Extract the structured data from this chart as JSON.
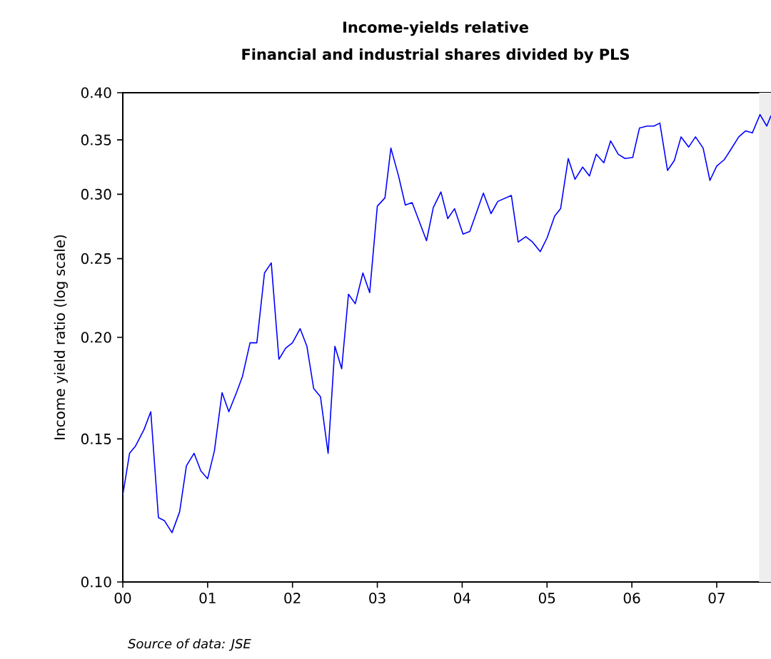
{
  "chart_data": {
    "type": "line",
    "title": "Income-yields relative",
    "subtitle": "Financial and industrial shares divided by PLS",
    "ylabel": "Income yield ratio (log scale)",
    "annotations": [
      "Source of data: JSE"
    ],
    "log": "y",
    "grid": false,
    "xlim": [
      0,
      7.64
    ],
    "ylim": [
      0.1,
      0.4
    ],
    "xticks": [
      {
        "value": 0,
        "label": "00"
      },
      {
        "value": 1,
        "label": "01"
      },
      {
        "value": 2,
        "label": "02"
      },
      {
        "value": 3,
        "label": "03"
      },
      {
        "value": 4,
        "label": "04"
      },
      {
        "value": 5,
        "label": "05"
      },
      {
        "value": 6,
        "label": "06"
      },
      {
        "value": 7,
        "label": "07"
      }
    ],
    "yticks": [
      {
        "value": 0.1,
        "label": "0.10"
      },
      0.15,
      {
        "value": 0.2,
        "label": "0.20"
      },
      0.25,
      {
        "value": 0.3,
        "label": "0.30"
      },
      0.35,
      {
        "value": 0.4,
        "label": "0.40"
      }
    ],
    "bands": [
      {
        "axis": "x",
        "from": 7.5,
        "to": 7.64,
        "color": "#eeeeee"
      }
    ],
    "series": [
      {
        "color": "#0000ff",
        "x": [
          0,
          0.08,
          0.15,
          0.25,
          0.33,
          0.42,
          0.49,
          0.58,
          0.67,
          0.75,
          0.84,
          0.92,
          1.0,
          1.08,
          1.17,
          1.25,
          1.34,
          1.41,
          1.5,
          1.58,
          1.67,
          1.75,
          1.84,
          1.92,
          2.0,
          2.09,
          2.17,
          2.25,
          2.33,
          2.42,
          2.5,
          2.58,
          2.66,
          2.74,
          2.83,
          2.91,
          3.0,
          3.09,
          3.16,
          3.25,
          3.33,
          3.41,
          3.58,
          3.66,
          3.75,
          3.83,
          3.91,
          4.01,
          4.09,
          4.25,
          4.34,
          4.42,
          4.58,
          4.66,
          4.75,
          4.83,
          4.92,
          5.0,
          5.09,
          5.16,
          5.25,
          5.33,
          5.42,
          5.5,
          5.58,
          5.67,
          5.75,
          5.84,
          5.92,
          6.01,
          6.09,
          6.18,
          6.26,
          6.33,
          6.42,
          6.5,
          6.58,
          6.67,
          6.75,
          6.84,
          6.92,
          7.0,
          7.09,
          7.17,
          7.26,
          7.34,
          7.42,
          7.51,
          7.59,
          7.64
        ],
        "values": [
          0.128,
          0.144,
          0.147,
          0.154,
          0.162,
          0.12,
          0.119,
          0.115,
          0.122,
          0.139,
          0.144,
          0.137,
          0.134,
          0.145,
          0.171,
          0.162,
          0.171,
          0.179,
          0.197,
          0.197,
          0.24,
          0.247,
          0.188,
          0.194,
          0.197,
          0.205,
          0.195,
          0.173,
          0.169,
          0.144,
          0.195,
          0.183,
          0.226,
          0.22,
          0.24,
          0.227,
          0.29,
          0.297,
          0.342,
          0.316,
          0.291,
          0.293,
          0.263,
          0.289,
          0.302,
          0.28,
          0.288,
          0.268,
          0.27,
          0.301,
          0.284,
          0.294,
          0.299,
          0.262,
          0.266,
          0.262,
          0.255,
          0.265,
          0.282,
          0.288,
          0.332,
          0.313,
          0.324,
          0.316,
          0.336,
          0.328,
          0.349,
          0.336,
          0.332,
          0.333,
          0.362,
          0.364,
          0.364,
          0.367,
          0.321,
          0.33,
          0.353,
          0.343,
          0.353,
          0.342,
          0.312,
          0.325,
          0.331,
          0.341,
          0.353,
          0.359,
          0.357,
          0.376,
          0.364,
          0.375
        ]
      }
    ]
  }
}
